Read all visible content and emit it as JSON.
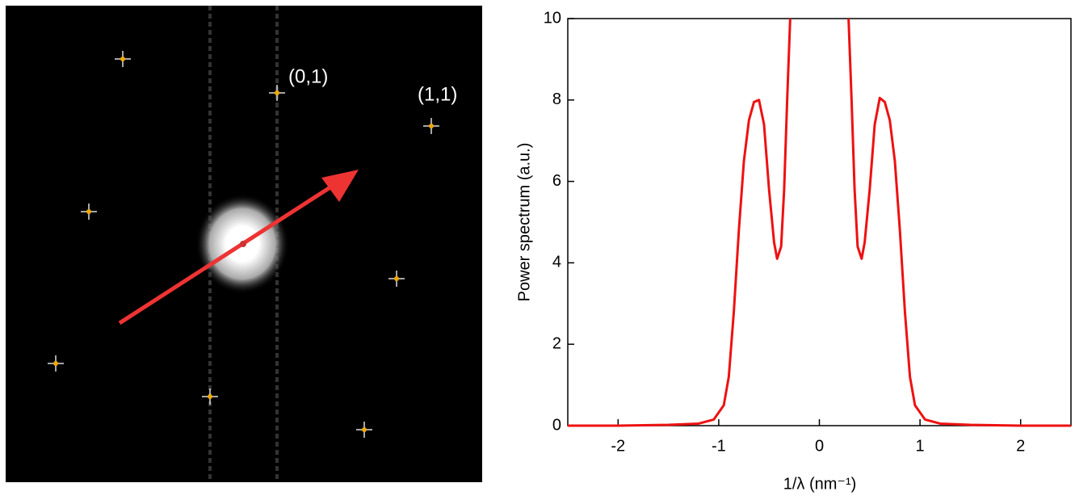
{
  "image": {
    "labels": [
      "(0,1)",
      "(1,1)"
    ]
  },
  "chart_data": {
    "type": "line",
    "x_label": "1/λ (nm⁻¹)",
    "y_label": "Power spectrum (a.u.)",
    "x": [
      -2.5,
      -2,
      -1.5,
      -1.2,
      -1.05,
      -0.95,
      -0.9,
      -0.85,
      -0.8,
      -0.75,
      -0.7,
      -0.65,
      -0.6,
      -0.55,
      -0.5,
      -0.45,
      -0.42,
      -0.38,
      -0.35,
      -0.32,
      -0.29,
      0,
      0.29,
      0.32,
      0.35,
      0.38,
      0.42,
      0.45,
      0.5,
      0.55,
      0.6,
      0.65,
      0.7,
      0.75,
      0.8,
      0.85,
      0.9,
      0.95,
      1.05,
      1.2,
      1.5,
      2,
      2.5
    ],
    "series": [
      {
        "color": "#ee1111",
        "values": [
          0,
          0,
          0.02,
          0.05,
          0.15,
          0.5,
          1.2,
          2.8,
          4.8,
          6.5,
          7.5,
          7.95,
          8.0,
          7.4,
          5.8,
          4.5,
          4.1,
          4.4,
          5.8,
          8.0,
          10,
          null,
          10,
          8.0,
          5.8,
          4.4,
          4.1,
          4.5,
          5.8,
          7.4,
          8.05,
          7.95,
          7.5,
          6.5,
          4.8,
          2.8,
          1.2,
          0.5,
          0.15,
          0.05,
          0.02,
          0,
          0
        ]
      }
    ],
    "xlim": [
      -2.5,
      2.5
    ],
    "xticks": [
      -2,
      -1,
      0,
      1,
      2
    ],
    "ylim": [
      0,
      10
    ],
    "yticks": [
      0,
      2,
      4,
      6,
      8,
      10
    ]
  }
}
